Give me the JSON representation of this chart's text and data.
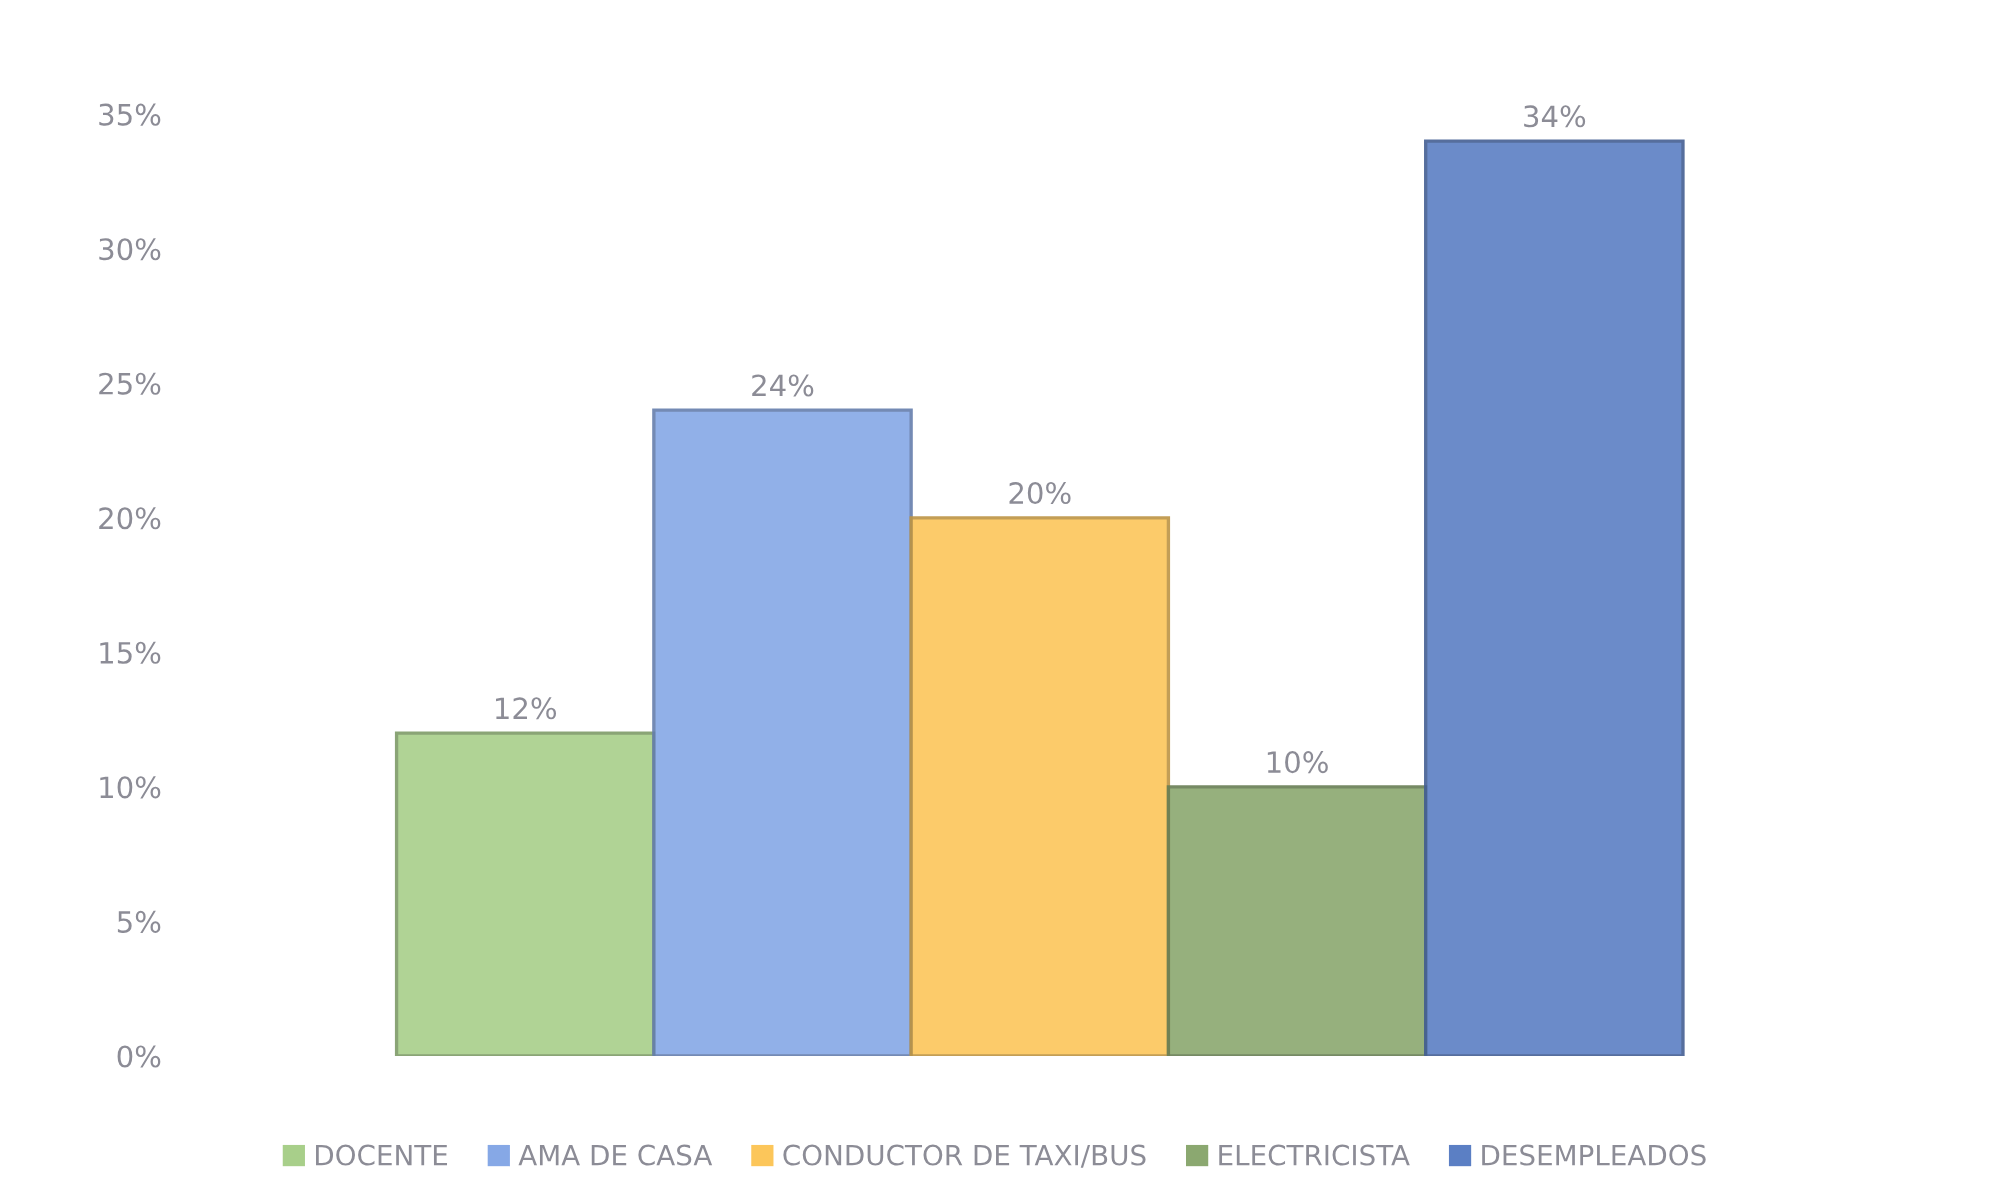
{
  "chart_data": {
    "type": "bar",
    "categories": [
      null
    ],
    "series": [
      {
        "name": "DOCENTE",
        "color": "#a8cf8a",
        "values": [
          12
        ],
        "value_labels": [
          "12%"
        ]
      },
      {
        "name": "AMA DE CASA",
        "color": "#86a8e6",
        "values": [
          24
        ],
        "value_labels": [
          "24%"
        ]
      },
      {
        "name": "CONDUCTOR DE TAXI/BUS",
        "color": "#fcc65a",
        "values": [
          20
        ],
        "value_labels": [
          "20%"
        ]
      },
      {
        "name": "ELECTRICISTA",
        "color": "#8ba870",
        "values": [
          10
        ],
        "value_labels": [
          "10%"
        ]
      },
      {
        "name": "DESEMPLEADOS",
        "color": "#5b7fc4",
        "values": [
          34
        ],
        "value_labels": [
          "34%"
        ]
      }
    ],
    "ylim": [
      0,
      35
    ],
    "yticks": [
      {
        "value": 0,
        "label": "0%"
      },
      {
        "value": 5,
        "label": "5%"
      },
      {
        "value": 10,
        "label": "10%"
      },
      {
        "value": 15,
        "label": "15%"
      },
      {
        "value": 20,
        "label": "20%"
      },
      {
        "value": 25,
        "label": "25%"
      },
      {
        "value": 30,
        "label": "30%"
      },
      {
        "value": 35,
        "label": "35%"
      }
    ],
    "grid": false,
    "legend": "bottom",
    "tick_labels": "y"
  }
}
